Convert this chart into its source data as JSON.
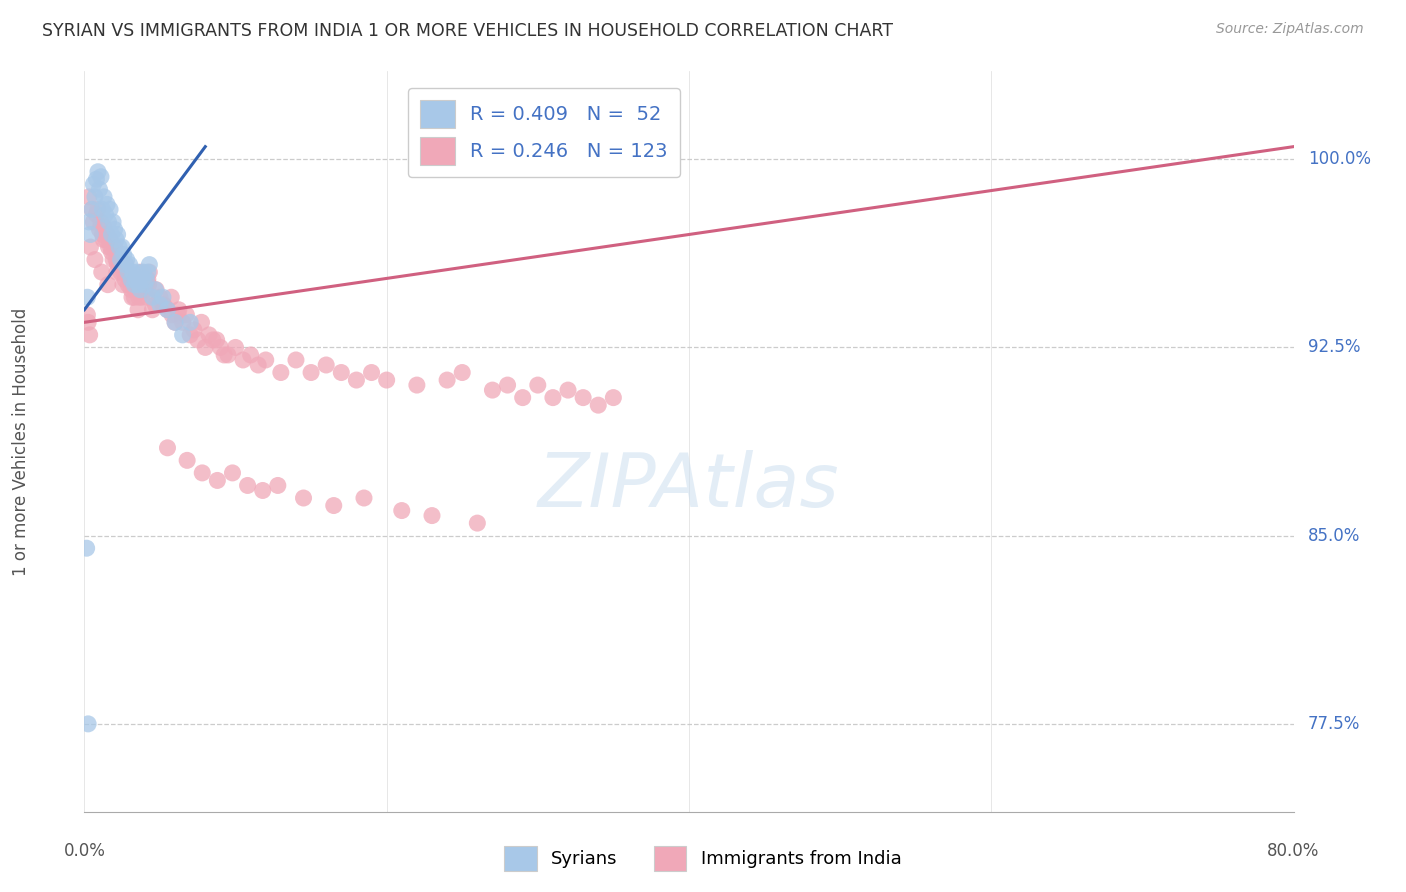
{
  "title": "SYRIAN VS IMMIGRANTS FROM INDIA 1 OR MORE VEHICLES IN HOUSEHOLD CORRELATION CHART",
  "source": "Source: ZipAtlas.com",
  "ylabel": "1 or more Vehicles in Household",
  "y_ticks": [
    100.0,
    92.5,
    85.0,
    77.5
  ],
  "y_ticks_labels": [
    "100.0%",
    "92.5%",
    "85.0%",
    "77.5%"
  ],
  "blue_color": "#a8c8e8",
  "pink_color": "#f0a8b8",
  "blue_line_color": "#3060b0",
  "pink_line_color": "#d06080",
  "xmin": 0.0,
  "xmax": 80.0,
  "ymin": 74.0,
  "ymax": 103.5,
  "blue_line_x": [
    0.0,
    8.0
  ],
  "blue_line_y": [
    94.0,
    100.5
  ],
  "pink_line_x": [
    0.0,
    80.0
  ],
  "pink_line_y": [
    93.5,
    100.5
  ],
  "blue_scatter_x": [
    0.3,
    0.5,
    0.6,
    0.7,
    0.8,
    0.9,
    1.0,
    1.1,
    1.2,
    1.3,
    1.4,
    1.5,
    1.6,
    1.7,
    1.8,
    1.9,
    2.0,
    2.1,
    2.2,
    2.3,
    2.4,
    2.5,
    2.6,
    2.7,
    2.8,
    2.9,
    3.0,
    3.1,
    3.2,
    3.3,
    3.4,
    3.5,
    3.6,
    3.7,
    3.8,
    3.9,
    4.0,
    4.1,
    4.2,
    4.3,
    4.5,
    4.7,
    5.0,
    5.2,
    5.5,
    6.0,
    6.5,
    7.0,
    0.2,
    0.4,
    0.15,
    0.25
  ],
  "blue_scatter_y": [
    97.5,
    98.0,
    99.0,
    98.5,
    99.2,
    99.5,
    98.8,
    99.3,
    98.0,
    98.5,
    97.8,
    98.2,
    97.5,
    98.0,
    97.0,
    97.5,
    97.2,
    96.8,
    97.0,
    96.5,
    96.0,
    96.5,
    96.2,
    95.8,
    96.0,
    95.5,
    95.8,
    95.2,
    95.5,
    95.0,
    95.2,
    95.5,
    95.0,
    94.8,
    95.2,
    95.5,
    95.0,
    95.2,
    95.5,
    95.8,
    94.5,
    94.8,
    94.2,
    94.5,
    94.0,
    93.5,
    93.0,
    93.5,
    94.5,
    97.0,
    84.5,
    77.5
  ],
  "pink_scatter_x": [
    0.3,
    0.5,
    0.6,
    0.8,
    0.9,
    1.0,
    1.1,
    1.2,
    1.3,
    1.4,
    1.5,
    1.6,
    1.7,
    1.8,
    1.9,
    2.0,
    2.1,
    2.2,
    2.3,
    2.4,
    2.5,
    2.6,
    2.7,
    2.8,
    2.9,
    3.0,
    3.1,
    3.2,
    3.3,
    3.4,
    3.5,
    3.6,
    3.7,
    3.8,
    3.9,
    4.0,
    4.1,
    4.2,
    4.3,
    4.5,
    4.7,
    5.0,
    5.2,
    5.5,
    5.8,
    6.0,
    6.2,
    6.5,
    7.0,
    7.5,
    8.0,
    8.5,
    9.0,
    9.5,
    10.0,
    10.5,
    11.0,
    11.5,
    12.0,
    13.0,
    14.0,
    15.0,
    16.0,
    17.0,
    18.0,
    19.0,
    20.0,
    22.0,
    24.0,
    25.0,
    27.0,
    28.0,
    29.0,
    30.0,
    31.0,
    32.0,
    33.0,
    34.0,
    35.0,
    0.4,
    0.7,
    1.15,
    1.55,
    2.15,
    2.55,
    3.15,
    3.55,
    4.15,
    5.5,
    6.8,
    7.8,
    8.8,
    9.8,
    10.8,
    11.8,
    12.8,
    14.5,
    16.5,
    18.5,
    21.0,
    23.0,
    26.0,
    0.2,
    0.25,
    0.35,
    1.25,
    1.75,
    2.25,
    2.75,
    3.25,
    3.75,
    4.25,
    4.75,
    5.25,
    5.75,
    6.25,
    6.75,
    7.25,
    7.75,
    8.25,
    8.75,
    9.25
  ],
  "pink_scatter_y": [
    98.5,
    98.0,
    97.5,
    97.8,
    98.0,
    97.2,
    97.5,
    97.0,
    97.3,
    96.8,
    97.0,
    96.5,
    96.8,
    96.3,
    96.0,
    96.5,
    96.0,
    95.8,
    96.0,
    95.5,
    95.8,
    95.5,
    95.2,
    95.5,
    95.0,
    95.2,
    94.8,
    95.0,
    94.5,
    94.8,
    95.0,
    94.5,
    94.8,
    94.5,
    95.2,
    94.8,
    95.0,
    95.2,
    95.5,
    94.0,
    94.2,
    94.5,
    94.2,
    94.0,
    93.8,
    93.5,
    93.8,
    93.5,
    93.0,
    92.8,
    92.5,
    92.8,
    92.5,
    92.2,
    92.5,
    92.0,
    92.2,
    91.8,
    92.0,
    91.5,
    92.0,
    91.5,
    91.8,
    91.5,
    91.2,
    91.5,
    91.2,
    91.0,
    91.2,
    91.5,
    90.8,
    91.0,
    90.5,
    91.0,
    90.5,
    90.8,
    90.5,
    90.2,
    90.5,
    96.5,
    96.0,
    95.5,
    95.0,
    95.5,
    95.0,
    94.5,
    94.0,
    94.5,
    88.5,
    88.0,
    87.5,
    87.2,
    87.5,
    87.0,
    86.8,
    87.0,
    86.5,
    86.2,
    86.5,
    86.0,
    85.8,
    85.5,
    93.8,
    93.5,
    93.0,
    96.8,
    96.5,
    96.0,
    95.8,
    95.2,
    95.5,
    95.0,
    94.8,
    94.2,
    94.5,
    94.0,
    93.8,
    93.2,
    93.5,
    93.0,
    92.8,
    92.2
  ]
}
